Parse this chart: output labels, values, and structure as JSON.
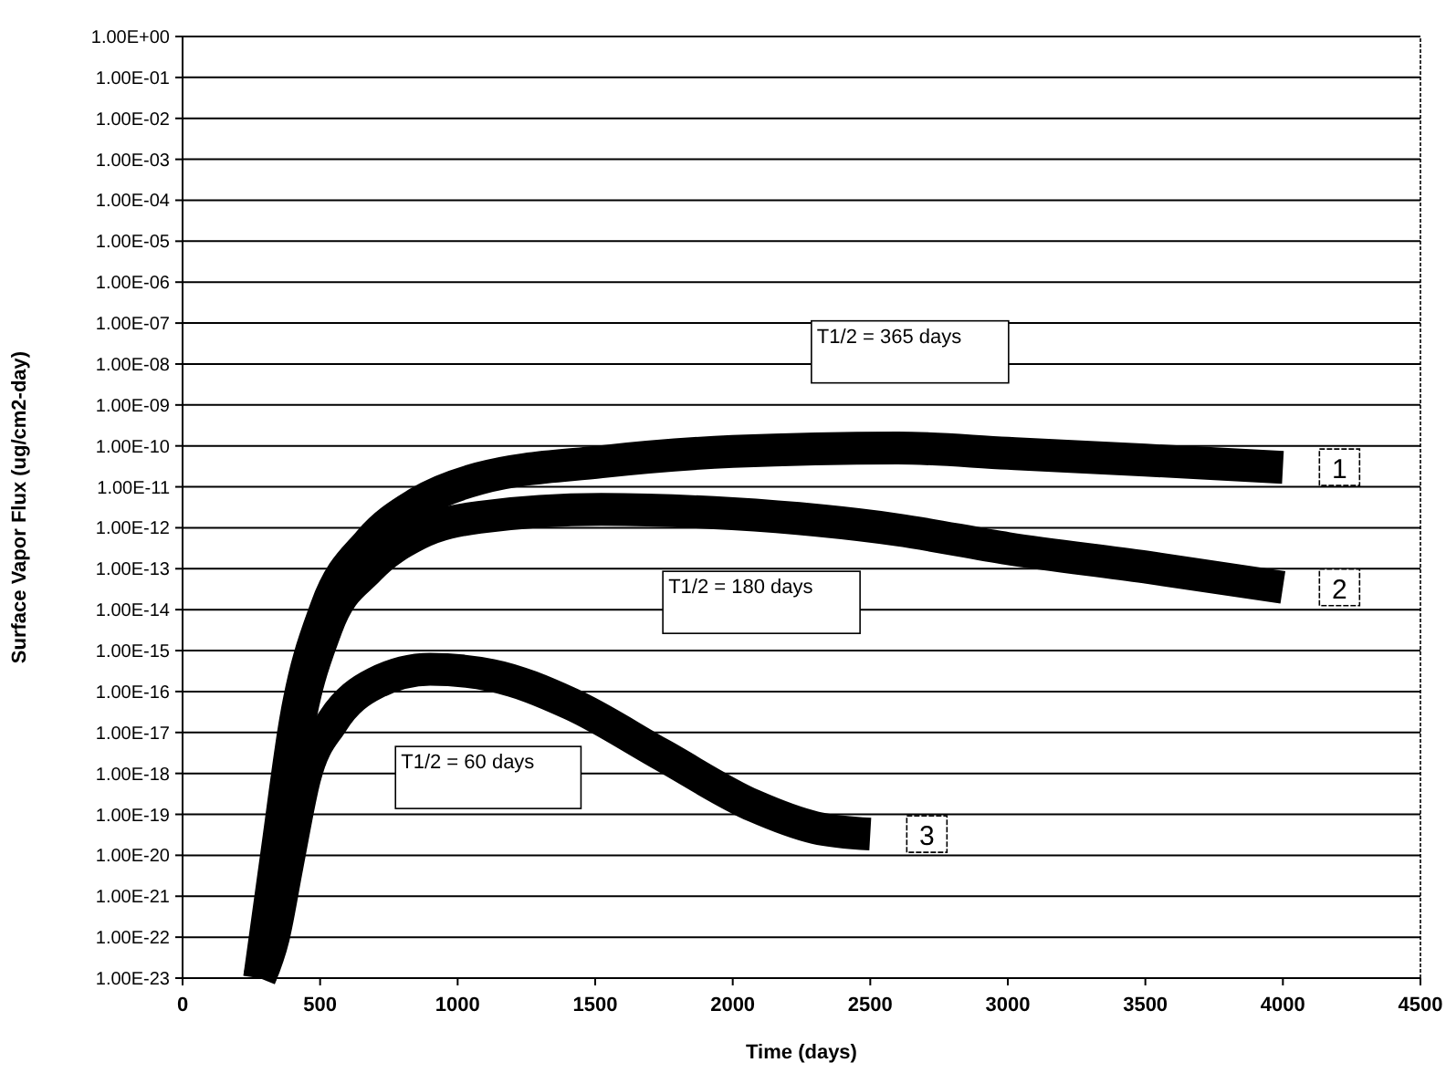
{
  "chart_data": {
    "type": "line",
    "xlabel": "Time (days)",
    "ylabel": "Surface Vapor Flux (ug/cm2-day)",
    "xlim": [
      0,
      4500
    ],
    "xticks": [
      0,
      500,
      1000,
      1500,
      2000,
      2500,
      3000,
      3500,
      4000,
      4500
    ],
    "ylim": [
      1e-23,
      1
    ],
    "log": true,
    "grid": "y",
    "marker": "none",
    "yticks": [
      {
        "value": 1,
        "label": "1.00E+00"
      },
      {
        "value": 0.1,
        "label": "1.00E-01"
      },
      {
        "value": 0.01,
        "label": "1.00E-02"
      },
      {
        "value": 0.001,
        "label": "1.00E-03"
      },
      {
        "value": 0.0001,
        "label": "1.00E-04"
      },
      {
        "value": 1e-05,
        "label": "1.00E-05"
      },
      {
        "value": 1e-06,
        "label": "1.00E-06"
      },
      {
        "value": 1e-07,
        "label": "1.00E-07"
      },
      {
        "value": 1e-08,
        "label": "1.00E-08"
      },
      {
        "value": 1e-09,
        "label": "1.00E-09"
      },
      {
        "value": 1e-10,
        "label": "1.00E-10"
      },
      {
        "value": 1e-11,
        "label": "1.00E-11"
      },
      {
        "value": 1e-12,
        "label": "1.00E-12"
      },
      {
        "value": 1e-13,
        "label": "1.00E-13"
      },
      {
        "value": 1e-14,
        "label": "1.00E-14"
      },
      {
        "value": 1e-15,
        "label": "1.00E-15"
      },
      {
        "value": 1e-16,
        "label": "1.00E-16"
      },
      {
        "value": 1e-17,
        "label": "1.00E-17"
      },
      {
        "value": 1e-18,
        "label": "1.00E-18"
      },
      {
        "value": 1e-19,
        "label": "1.00E-19"
      },
      {
        "value": 1e-20,
        "label": "1.00E-20"
      },
      {
        "value": 1e-21,
        "label": "1.00E-21"
      },
      {
        "value": 1e-22,
        "label": "1.00E-22"
      },
      {
        "value": 1e-23,
        "label": "1.00E-23"
      }
    ],
    "series": [
      {
        "name": "1",
        "color": "#000000",
        "x": [
          280,
          344,
          411,
          522,
          678,
          856,
          1078,
          1522,
          2000,
          2600,
          3000,
          3500,
          4000
        ],
        "values": [
          1e-23,
          1.3e-20,
          2e-17,
          1.1e-14,
          4.5e-13,
          4e-12,
          1.6e-11,
          4.1e-11,
          7.3e-11,
          8.9e-11,
          6.6e-11,
          4.5e-11,
          3e-11
        ]
      },
      {
        "name": "2",
        "color": "#000000",
        "x": [
          280,
          344,
          411,
          522,
          678,
          856,
          1078,
          1522,
          2000,
          2600,
          3000,
          3500,
          4000
        ],
        "values": [
          1e-23,
          2e-21,
          5.6e-18,
          3.5e-15,
          1e-13,
          7.1e-13,
          1.8e-12,
          2.8e-12,
          2.2e-12,
          8.9e-13,
          3.1e-13,
          1.1e-13,
          3.5e-14
        ]
      },
      {
        "name": "3",
        "color": "#000000",
        "x": [
          280,
          330,
          380,
          444,
          544,
          700,
          900,
          1122,
          1411,
          1744,
          2078,
          2300,
          2500
        ],
        "values": [
          1e-23,
          1e-22,
          5.6e-21,
          7.9e-19,
          1.8e-17,
          1.6e-16,
          3.5e-16,
          2.5e-16,
          5e-17,
          2.8e-18,
          1.6e-19,
          4.7e-20,
          3.3e-20
        ]
      }
    ],
    "annotations": [
      "T1/2 = 365 days",
      "T1/2 = 180 days",
      "T1/2 = 60 days"
    ]
  }
}
